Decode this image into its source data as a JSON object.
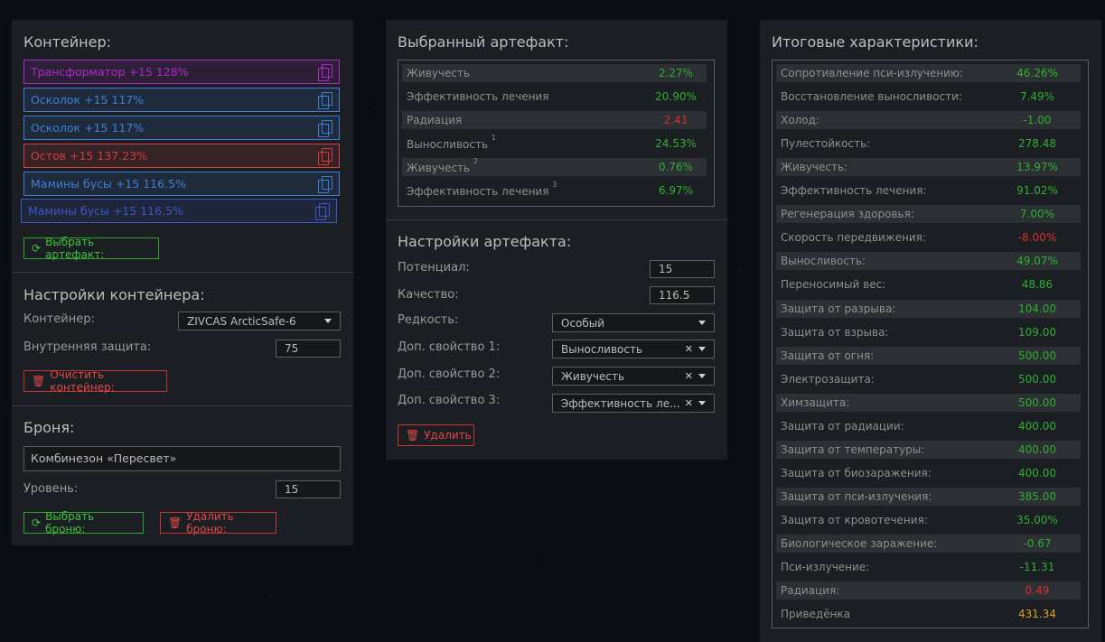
{
  "container_panel": {
    "title": "Контейнер:",
    "items": [
      {
        "label": "Трансформатор +15 128%",
        "color": "#b028c8"
      },
      {
        "label": "Осколок +15 117%",
        "color": "#3d7fd8"
      },
      {
        "label": "Осколок +15 117%",
        "color": "#3d7fd8"
      },
      {
        "label": "Остов +15 137.23%",
        "color": "#d83b3b"
      },
      {
        "label": "Мамины бусы +15 116.5%",
        "color": "#3d7fd8"
      },
      {
        "label": "Мамины бусы +15 116.5%",
        "color": "#3b57c8"
      }
    ],
    "select_artifact_btn": "Выбрать артефакт:",
    "settings_title": "Настройки контейнера:",
    "container_label": "Контейнер:",
    "container_value": "ZIVCAS ArcticSafe-6",
    "inner_protection_label": "Внутренняя защита:",
    "inner_protection_value": "75",
    "clear_btn": "Очистить контейнер:",
    "armor_title": "Броня:",
    "armor_value": "Комбинезон «Пересвет»",
    "level_label": "Уровень:",
    "level_value": "15",
    "select_armor_btn": "Выбрать броню:",
    "delete_armor_btn": "Удалить броню:"
  },
  "artifact_panel": {
    "title": "Выбранный артефакт:",
    "stats": [
      {
        "label": "Живучесть",
        "sup": "",
        "value": "2.27%",
        "color": "green"
      },
      {
        "label": "Эффективность лечения",
        "sup": "",
        "value": "20.90%",
        "color": "green"
      },
      {
        "label": "Радиация",
        "sup": "",
        "value": "2.41",
        "color": "red"
      },
      {
        "label": "Выносливость",
        "sup": "1",
        "value": "24.53%",
        "color": "green"
      },
      {
        "label": "Живучесть",
        "sup": "2",
        "value": "0.76%",
        "color": "green"
      },
      {
        "label": "Эффективность лечения",
        "sup": "3",
        "value": "6.97%",
        "color": "green"
      }
    ],
    "settings_title": "Настройки артефакта:",
    "potential_label": "Потенциал:",
    "potential_value": "15",
    "quality_label": "Качество:",
    "quality_value": "116.5",
    "rarity_label": "Редкость:",
    "rarity_value": "Особый",
    "extra1_label": "Доп. свойство 1:",
    "extra1_value": "Выносливость",
    "extra2_label": "Доп. свойство 2:",
    "extra2_value": "Живучесть",
    "extra3_label": "Доп. свойство 3:",
    "extra3_value": "Эффективность ле...",
    "delete_btn": "Удалить"
  },
  "totals_panel": {
    "title": "Итоговые характеристики:",
    "stats": [
      {
        "label": "Сопротивление пси-излучению:",
        "value": "46.26%",
        "color": "green"
      },
      {
        "label": "Восстановление выносливости:",
        "value": "7.49%",
        "color": "green"
      },
      {
        "label": "Холод:",
        "value": "-1.00",
        "color": "green"
      },
      {
        "label": "Пулестойкость:",
        "value": "278.48",
        "color": "green"
      },
      {
        "label": "Живучесть:",
        "value": "13.97%",
        "color": "green"
      },
      {
        "label": "Эффективность лечения:",
        "value": "91.02%",
        "color": "green"
      },
      {
        "label": "Регенерация здоровья:",
        "value": "7.00%",
        "color": "green"
      },
      {
        "label": "Скорость передвижения:",
        "value": "-8.00%",
        "color": "red"
      },
      {
        "label": "Выносливость:",
        "value": "49.07%",
        "color": "green"
      },
      {
        "label": "Переносимый вес:",
        "value": "48.86",
        "color": "green"
      },
      {
        "label": "Защита от разрыва:",
        "value": "104.00",
        "color": "green"
      },
      {
        "label": "Защита от взрыва:",
        "value": "109.00",
        "color": "green"
      },
      {
        "label": "Защита от огня:",
        "value": "500.00",
        "color": "green"
      },
      {
        "label": "Электрозащита:",
        "value": "500.00",
        "color": "green"
      },
      {
        "label": "Химзащита:",
        "value": "500.00",
        "color": "green"
      },
      {
        "label": "Защита от радиации:",
        "value": "400.00",
        "color": "green"
      },
      {
        "label": "Защита от температуры:",
        "value": "400.00",
        "color": "green"
      },
      {
        "label": "Защита от биозаражения:",
        "value": "400.00",
        "color": "green"
      },
      {
        "label": "Защита от пси-излучения:",
        "value": "385.00",
        "color": "green"
      },
      {
        "label": "Защита от кровотечения:",
        "value": "35.00%",
        "color": "green"
      },
      {
        "label": "Биологическое заражение:",
        "value": "-0.67",
        "color": "green"
      },
      {
        "label": "Пси-излучение:",
        "value": "-11.31",
        "color": "green"
      },
      {
        "label": "Радиация:",
        "value": "0.49",
        "color": "red"
      },
      {
        "label": "Приведёнка",
        "value": "431.34",
        "color": "orange"
      }
    ]
  }
}
